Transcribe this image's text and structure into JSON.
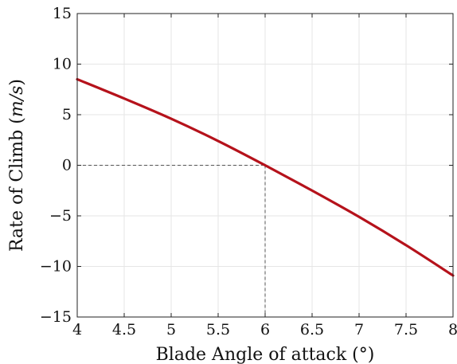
{
  "chart_data": {
    "type": "line",
    "title": "",
    "xlabel": "Blade Angle of attack (°)",
    "ylabel": "Rate of Climb (m/s)",
    "xlim": [
      4,
      8
    ],
    "ylim": [
      -15,
      15
    ],
    "x_ticks": [
      4,
      4.5,
      5,
      5.5,
      6,
      6.5,
      7,
      7.5,
      8
    ],
    "x_tick_labels": [
      "4",
      "4.5",
      "5",
      "5.5",
      "6",
      "6.5",
      "7",
      "7.5",
      "8"
    ],
    "y_ticks": [
      -15,
      -10,
      -5,
      0,
      5,
      10,
      15
    ],
    "y_tick_labels": [
      "−15",
      "−10",
      "−5",
      "0",
      "5",
      "10",
      "15"
    ],
    "grid": true,
    "legend": "none",
    "series": [
      {
        "color": "#b5121b",
        "x": [
          4,
          4.5,
          5,
          5.5,
          6,
          6.5,
          7,
          7.5,
          8
        ],
        "y": [
          8.5,
          6.6,
          4.6,
          2.4,
          0.0,
          -2.5,
          -5.1,
          -7.9,
          -10.9
        ]
      }
    ],
    "reference_lines": [
      {
        "style": "dashed",
        "color": "#555555",
        "from": [
          4,
          0
        ],
        "to": [
          6,
          0
        ]
      },
      {
        "style": "dashed",
        "color": "#555555",
        "from": [
          6,
          0
        ],
        "to": [
          6,
          -15
        ]
      }
    ]
  }
}
